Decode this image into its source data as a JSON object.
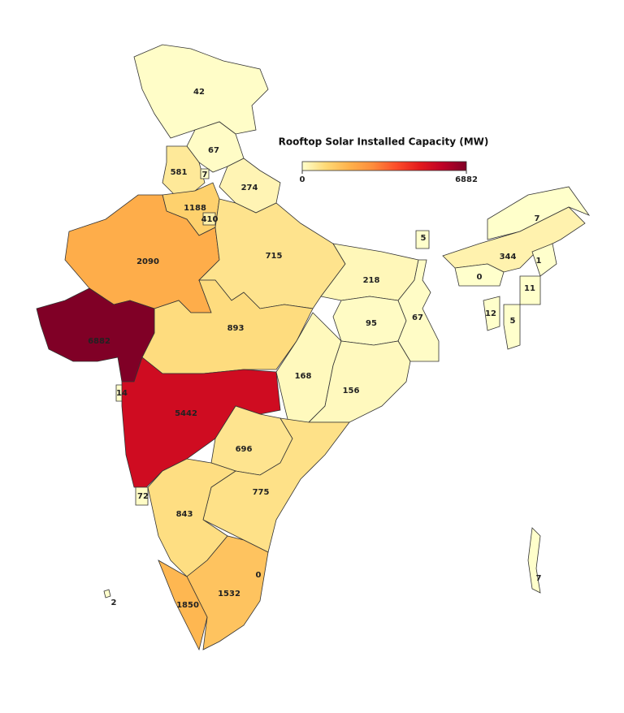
{
  "map": {
    "title": "Rooftop Solar Installed Capacity (MW)",
    "colorbar": {
      "lim": [
        0,
        6882
      ],
      "ticks": [
        0,
        6882
      ],
      "colors": [
        "#ffffcc",
        "#fed976",
        "#feb24c",
        "#fd8d3c",
        "#fc4e2a",
        "#e31a1c",
        "#bd0026",
        "#800026"
      ]
    },
    "regions": [
      {
        "value": 42
      },
      {
        "value": 67
      },
      {
        "value": 581
      },
      {
        "value": 7
      },
      {
        "value": 274
      },
      {
        "value": 1188
      },
      {
        "value": 410
      },
      {
        "value": 2090
      },
      {
        "value": 715
      },
      {
        "value": 5
      },
      {
        "value": 7
      },
      {
        "value": 344
      },
      {
        "value": 1
      },
      {
        "value": 0
      },
      {
        "value": 11
      },
      {
        "value": 218
      },
      {
        "value": 12
      },
      {
        "value": 5
      },
      {
        "value": 95
      },
      {
        "value": 67
      },
      {
        "value": 893
      },
      {
        "value": 6882
      },
      {
        "value": 168
      },
      {
        "value": 156
      },
      {
        "value": 14
      },
      {
        "value": 5442
      },
      {
        "value": 696
      },
      {
        "value": 775
      },
      {
        "value": 72
      },
      {
        "value": 843
      },
      {
        "value": 0
      },
      {
        "value": 1532
      },
      {
        "value": 1850
      },
      {
        "value": 2
      },
      {
        "value": 7
      }
    ]
  }
}
